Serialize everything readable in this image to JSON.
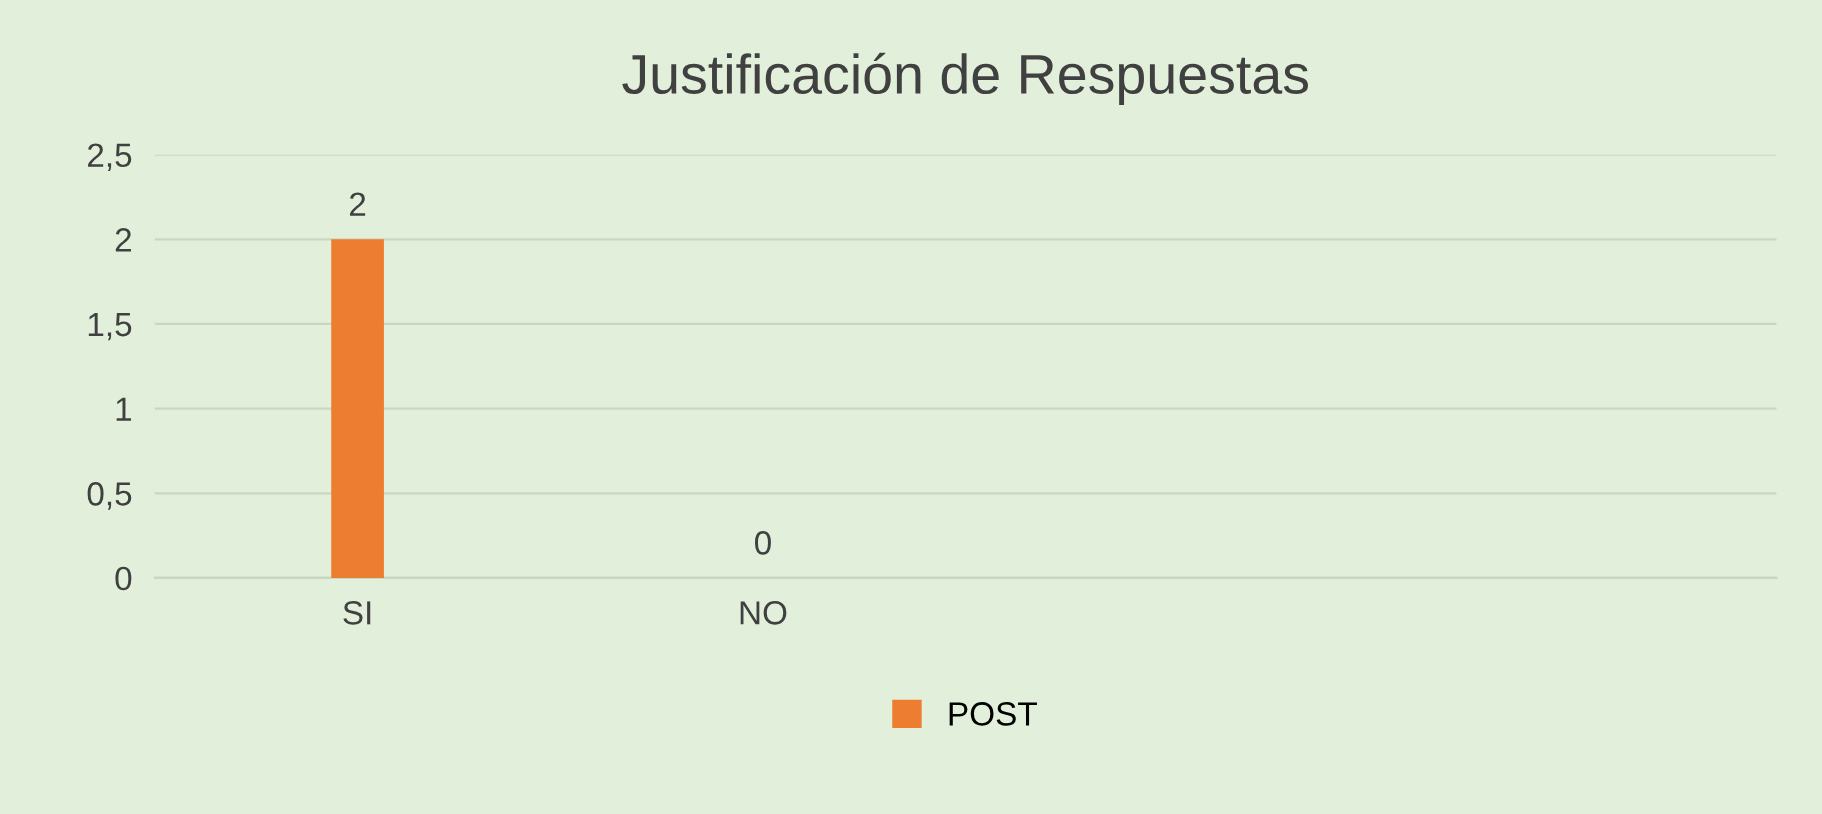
{
  "chart_data": {
    "type": "bar",
    "title": "Justificación de Respuestas",
    "categories": [
      "SI",
      "NO",
      null,
      null
    ],
    "series": [
      {
        "name": "POST",
        "color": "#ed7d31",
        "values": [
          2,
          0,
          null,
          null
        ]
      }
    ],
    "ylim": [
      0,
      2.5
    ],
    "yticks": [
      0,
      {
        "value": 0.5,
        "label": "0,5"
      },
      1,
      {
        "value": 1.5,
        "label": "1,5"
      },
      2,
      {
        "value": 2.5,
        "label": "2,5"
      }
    ],
    "grid": "y",
    "legend": "bottom",
    "data_labels": true
  }
}
